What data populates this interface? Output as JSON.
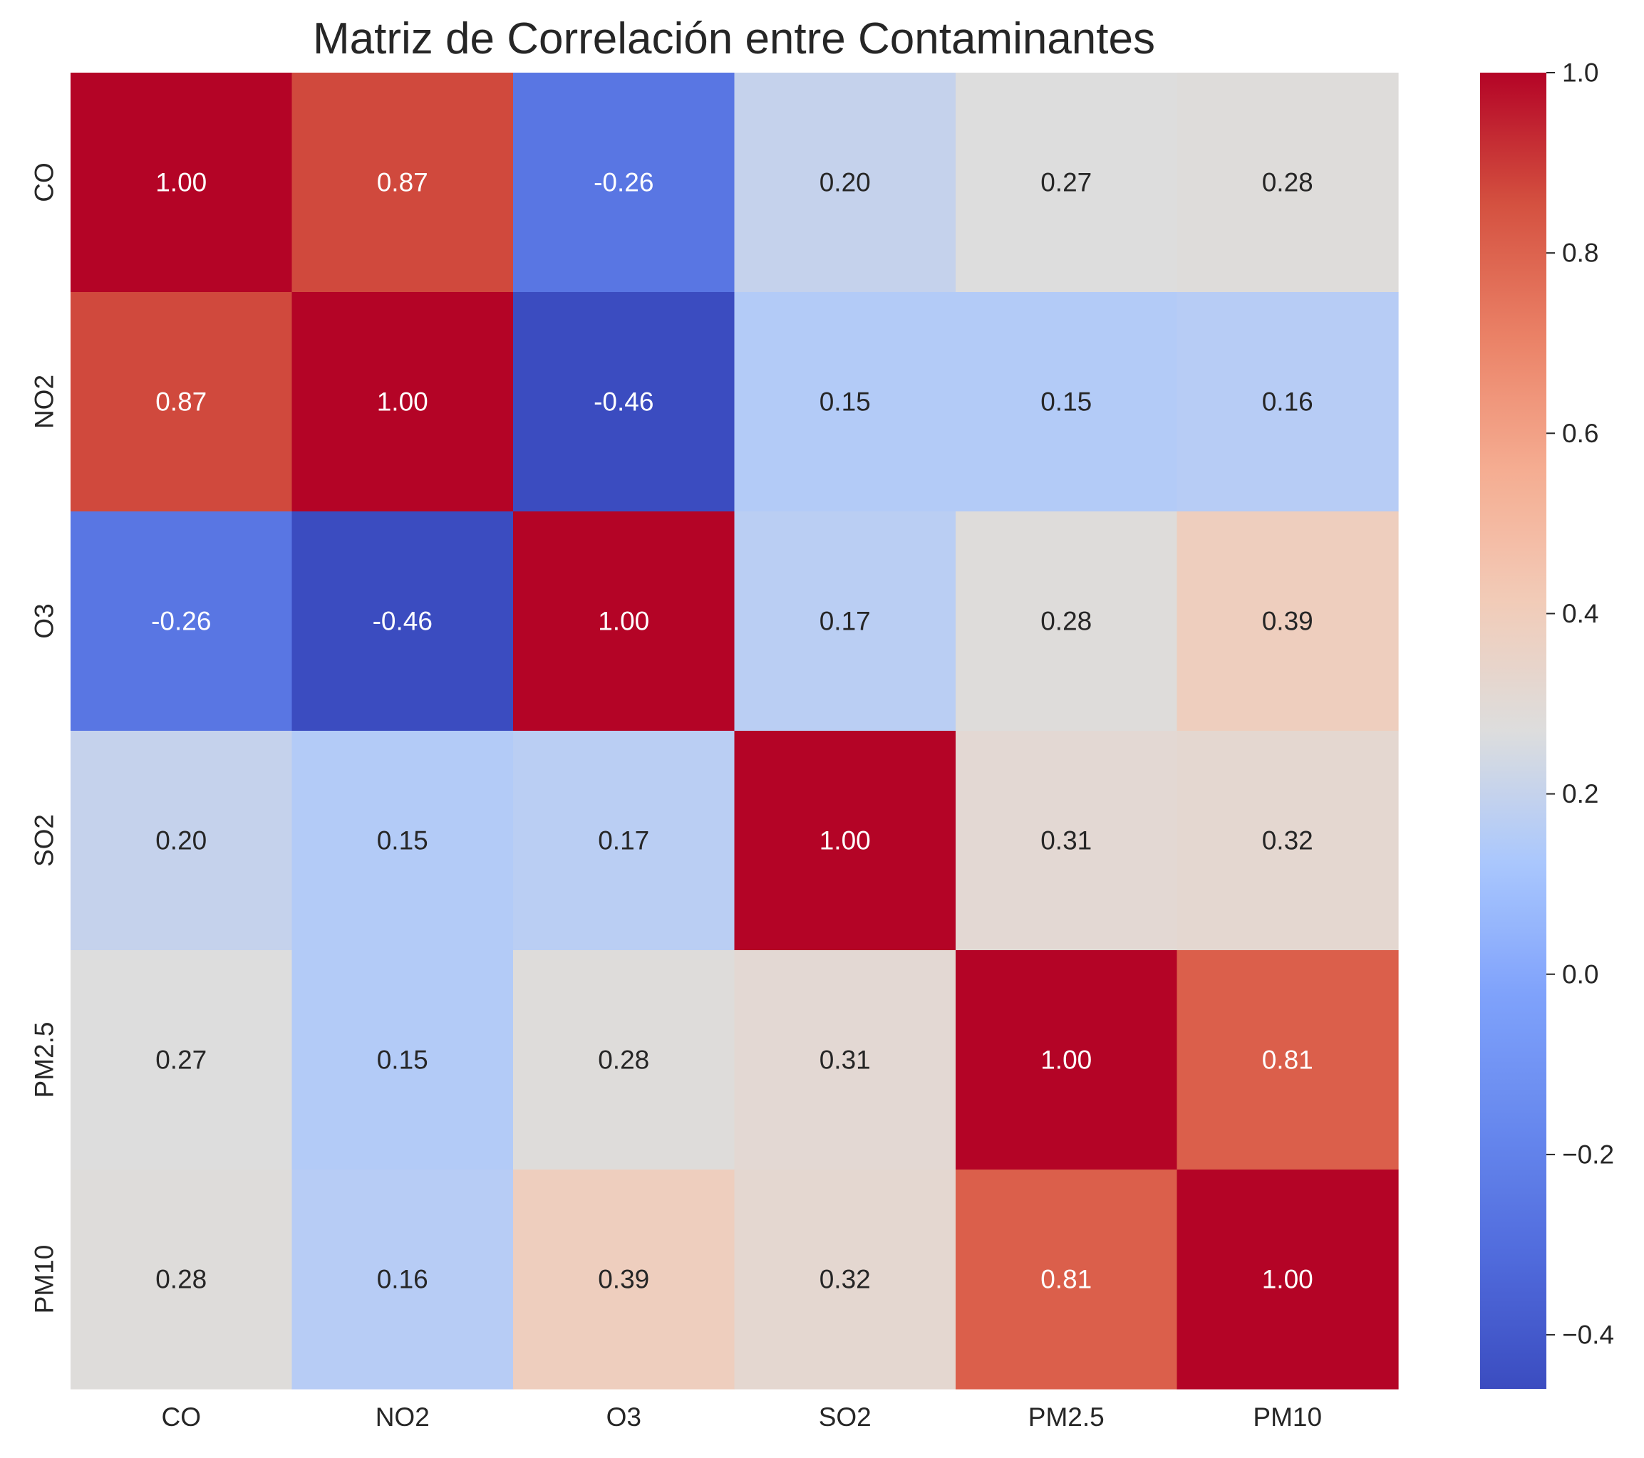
{
  "chart_data": {
    "type": "heatmap",
    "title": "Matriz de Correlación entre Contaminantes",
    "xlabel": "",
    "ylabel": "",
    "x_categories": [
      "CO",
      "NO2",
      "O3",
      "SO2",
      "PM2.5",
      "PM10"
    ],
    "y_categories": [
      "CO",
      "NO2",
      "O3",
      "SO2",
      "PM2.5",
      "PM10"
    ],
    "values": [
      [
        1.0,
        0.87,
        -0.26,
        0.2,
        0.27,
        0.28
      ],
      [
        0.87,
        1.0,
        -0.46,
        0.15,
        0.15,
        0.16
      ],
      [
        -0.26,
        -0.46,
        1.0,
        0.17,
        0.28,
        0.39
      ],
      [
        0.2,
        0.15,
        0.17,
        1.0,
        0.31,
        0.32
      ],
      [
        0.27,
        0.15,
        0.28,
        0.31,
        1.0,
        0.81
      ],
      [
        0.28,
        0.16,
        0.39,
        0.32,
        0.81,
        1.0
      ]
    ],
    "value_format": "0.00",
    "colormap": "coolwarm",
    "vmin": -0.46,
    "vmax": 1.0,
    "colorbar_ticks": [
      "1.0",
      "0.8",
      "0.6",
      "0.4",
      "0.2",
      "0.0",
      "−0.2",
      "−0.4"
    ],
    "colorbar_tick_values": [
      1.0,
      0.8,
      0.6,
      0.4,
      0.2,
      0.0,
      -0.2,
      -0.4
    ],
    "grid": false,
    "legend": "colorbar-right"
  }
}
